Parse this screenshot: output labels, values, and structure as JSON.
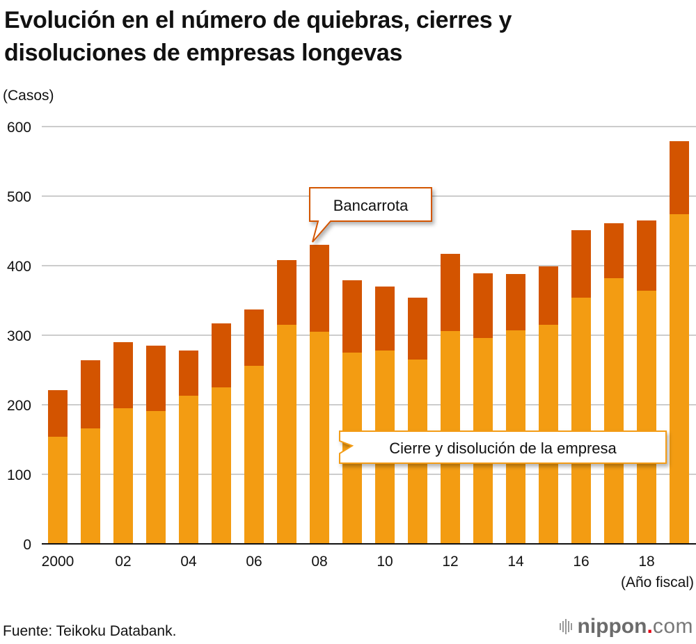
{
  "title_lines": [
    "Evolución en el número de quiebras, cierres y",
    "disoluciones de empresas longevas"
  ],
  "footer": {
    "source": "Fuente: Teikoku Databank.",
    "logo": {
      "main": "nippon",
      "dot": ".",
      "tld": "com",
      "icon": "sound-bars-icon"
    }
  },
  "colors": {
    "bankruptcy": "#D35400",
    "closure": "#F39C12",
    "grid": "#CCCCCC",
    "axis": "#111111"
  },
  "chart_data": {
    "type": "bar",
    "stacked": true,
    "title": "Evolución en el número de quiebras, cierres y disoluciones de empresas longevas",
    "ylabel": "(Casos)",
    "xlabel": "(Año fiscal)",
    "ylim": [
      0,
      600
    ],
    "yticks": [
      0,
      100,
      200,
      300,
      400,
      500,
      600
    ],
    "grid": true,
    "categories": [
      "2000",
      "2001",
      "2002",
      "2003",
      "2004",
      "2005",
      "2006",
      "2007",
      "2008",
      "2009",
      "2010",
      "2011",
      "2012",
      "2013",
      "2014",
      "2015",
      "2016",
      "2017",
      "2018",
      "2019"
    ],
    "xtick_labels": [
      "2000",
      "",
      "02",
      "",
      "04",
      "",
      "06",
      "",
      "08",
      "",
      "10",
      "",
      "12",
      "",
      "14",
      "",
      "16",
      "",
      "18",
      ""
    ],
    "series": [
      {
        "name": "Cierre y disolución de la empresa",
        "color": "#F39C12",
        "values": [
          154,
          166,
          195,
          191,
          213,
          225,
          256,
          315,
          305,
          275,
          278,
          265,
          306,
          296,
          307,
          315,
          354,
          382,
          364,
          474
        ]
      },
      {
        "name": "Bancarrota",
        "color": "#D35400",
        "values": [
          67,
          98,
          95,
          94,
          65,
          92,
          81,
          93,
          125,
          104,
          92,
          89,
          111,
          93,
          81,
          84,
          97,
          79,
          101,
          105
        ]
      }
    ],
    "annotations": [
      {
        "text": "Bancarrota",
        "points_to": "2008 top segment"
      },
      {
        "text": "Cierre y disolución de la empresa",
        "points_to": "2009 bottom segment"
      }
    ]
  }
}
